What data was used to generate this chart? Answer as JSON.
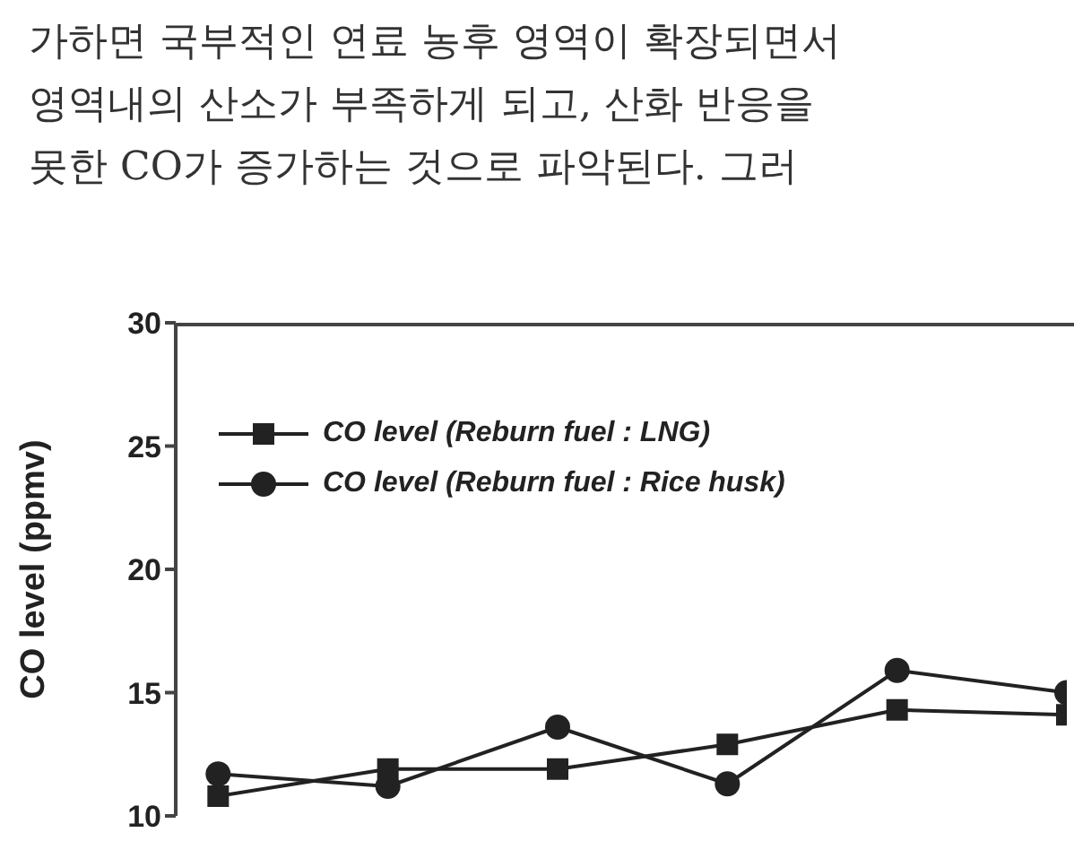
{
  "chart_data": {
    "type": "line",
    "annotations": [
      "가하면 국부적인 연료 농후 영역이 확장되면서",
      "영역내의 산소가 부족하게 되고, 산화 반응을",
      "못한 CO가 증가하는 것으로 파악된다. 그러"
    ],
    "ylabel": "CO level (ppmv)",
    "categories": [
      null,
      null,
      null,
      null,
      null,
      null
    ],
    "series": [
      {
        "name": "CO level (Reburn fuel : LNG)",
        "color": "#222222",
        "marker": "square",
        "values": [
          10.8,
          11.9,
          11.9,
          12.9,
          14.3,
          14.1
        ]
      },
      {
        "name": "CO level (Reburn fuel : Rice husk)",
        "color": "#222222",
        "marker": "circle",
        "values": [
          11.7,
          11.2,
          13.6,
          11.3,
          15.9,
          15.0
        ]
      }
    ],
    "ylim": [
      10,
      30
    ],
    "yticks": [
      10,
      15,
      20,
      25,
      30
    ],
    "tick_labels": "y",
    "legend": "top left"
  }
}
